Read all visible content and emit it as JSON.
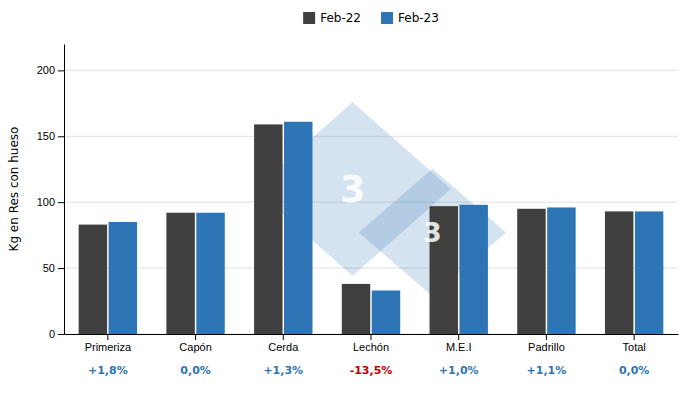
{
  "chart_data": {
    "type": "bar",
    "categories": [
      "Primeriza",
      "Capón",
      "Cerda",
      "Lechón",
      "M.E.I",
      "Padrillo",
      "Total"
    ],
    "series": [
      {
        "name": "Feb-22",
        "color": "#404040",
        "values": [
          83,
          92,
          159,
          38,
          97,
          95,
          93
        ]
      },
      {
        "name": "Feb-23",
        "color": "#2E75B6",
        "values": [
          85,
          92,
          161,
          33,
          98,
          96,
          93
        ]
      }
    ],
    "ylabel": "Kg en Res con hueso",
    "ylim": [
      0,
      220
    ],
    "yticks": [
      0,
      50,
      100,
      150,
      200
    ],
    "grid": true,
    "legend": "top",
    "annotations": [
      {
        "category": "Primeriza",
        "text": "+1,8%",
        "color": "#2E75B6"
      },
      {
        "category": "Capón",
        "text": "0,0%",
        "color": "#2E75B6"
      },
      {
        "category": "Cerda",
        "text": "+1,3%",
        "color": "#2E75B6"
      },
      {
        "category": "Lechón",
        "text": "-13,5%",
        "color": "#C00000"
      },
      {
        "category": "M.E.I",
        "text": "+1,0%",
        "color": "#2E75B6"
      },
      {
        "category": "Padrillo",
        "text": "+1,1%",
        "color": "#2E75B6"
      },
      {
        "category": "Total",
        "text": "0,0%",
        "color": "#2E75B6"
      },
      {
        "text": "3"
      },
      {
        "text": "3"
      }
    ]
  }
}
